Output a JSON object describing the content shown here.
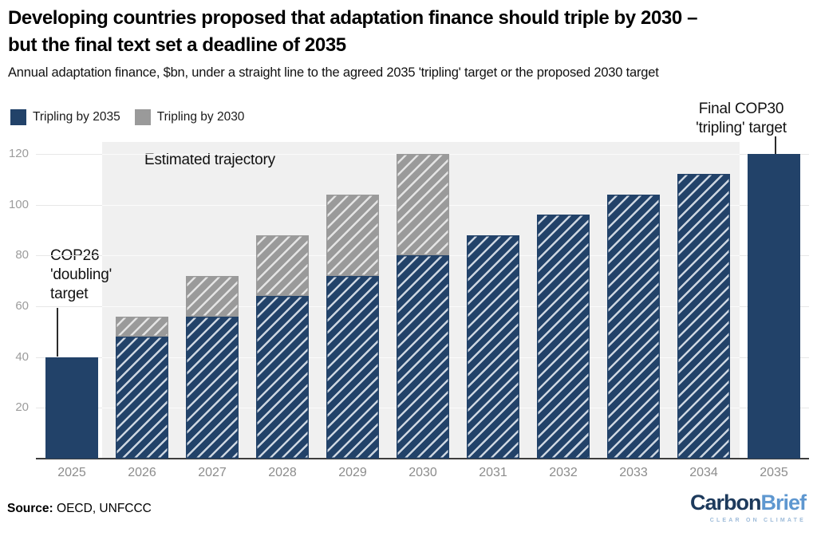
{
  "header": {
    "title_line1": "Developing countries proposed that adaptation finance should triple by 2030 –",
    "title_line2": "but the final text set a deadline of 2035",
    "subtitle": "Annual adaptation finance, $bn, under a straight line to the agreed 2035 'tripling' target or the proposed 2030 target"
  },
  "legend": {
    "items": [
      {
        "label": "Tripling by 2035",
        "color": "#224269"
      },
      {
        "label": "Tripling by 2030",
        "color": "#9a9a9a"
      }
    ]
  },
  "annotations": {
    "estimated_trajectory": "Estimated trajectory",
    "cop26_lines": [
      "COP26",
      "'doubling'",
      "target"
    ],
    "final_cop30_lines": [
      "Final COP30",
      "'tripling' target"
    ]
  },
  "footer": {
    "source_label": "Source:",
    "source_names": "OECD, UNFCCC",
    "logo_part1": "Carbon",
    "logo_part2": "Brief",
    "logo_tagline": "CLEAR ON CLIMATE",
    "logo_color1": "#1d3a5c",
    "logo_color2": "#5e97d0",
    "logo_tagline_color": "#9dbbd9"
  },
  "chart_data": {
    "type": "bar",
    "stacked": true,
    "title": "Developing countries proposed that adaptation finance should triple by 2030 – but the final text set a deadline of 2035",
    "xlabel": "",
    "ylabel": "Annual adaptation finance, $bn",
    "categories": [
      "2025",
      "2026",
      "2027",
      "2028",
      "2029",
      "2030",
      "2031",
      "2032",
      "2033",
      "2034",
      "2035"
    ],
    "series": [
      {
        "name": "Tripling by 2035",
        "color": "#224269",
        "values": [
          40,
          48,
          56,
          64,
          72,
          80,
          88,
          96,
          104,
          112,
          120
        ]
      },
      {
        "name": "Tripling by 2030",
        "color": "#9a9a9a",
        "totals": [
          null,
          56,
          72,
          88,
          104,
          120,
          null,
          null,
          null,
          null,
          null
        ],
        "note": "gray segment stacked from the 2035-path value up to the 2030-path total"
      }
    ],
    "solid_categories": [
      "2025",
      "2035"
    ],
    "hatched_categories": [
      "2026",
      "2027",
      "2028",
      "2029",
      "2030",
      "2031",
      "2032",
      "2033",
      "2034"
    ],
    "yticks": [
      20,
      40,
      60,
      80,
      100,
      120
    ],
    "ylim": [
      0,
      126
    ],
    "grid": "horizontal",
    "legend_position": "top-left",
    "band": {
      "label": "Estimated trajectory",
      "from": "2026",
      "to": "2034",
      "color": "#f0f0f0"
    },
    "hatch_light_blue": "#cdd6e1",
    "hatch_light_gray": "#e4e4e4"
  }
}
